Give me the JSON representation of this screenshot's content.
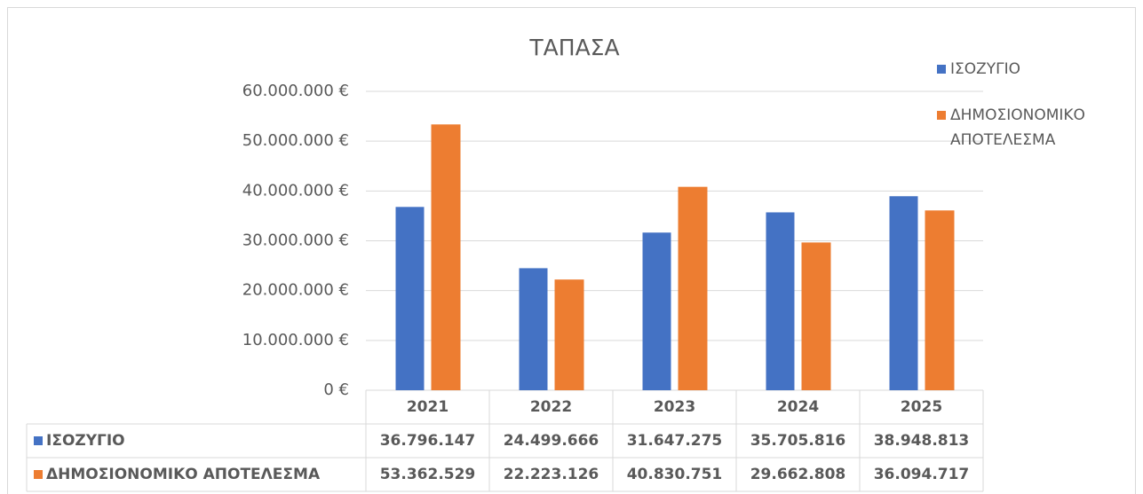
{
  "chart_data": {
    "type": "bar",
    "title": "ΤΑΠΑΣΑ",
    "categories": [
      "2021",
      "2022",
      "2023",
      "2024",
      "2025"
    ],
    "series": [
      {
        "name": "ΙΣΟΖΥΓΙΟ",
        "color": "#4472c4",
        "values": [
          36796147,
          24499666,
          31647275,
          35705816,
          38948813
        ],
        "value_labels": [
          "36.796.147",
          "24.499.666",
          "31.647.275",
          "35.705.816",
          "38.948.813"
        ]
      },
      {
        "name": "ΔΗΜΟΣΙΟΝΟΜΙΚΟ ΑΠΟΤΕΛΕΣΜΑ",
        "color": "#ed7d31",
        "values": [
          53362529,
          22223126,
          40830751,
          29662808,
          36094717
        ],
        "value_labels": [
          "53.362.529",
          "22.223.126",
          "40.830.751",
          "29.662.808",
          "36.094.717"
        ]
      }
    ],
    "ylim": [
      0,
      60000000
    ],
    "yticks": [
      {
        "value": 0,
        "label": "0 €"
      },
      {
        "value": 10000000,
        "label": "10.000.000 €"
      },
      {
        "value": 20000000,
        "label": "20.000.000 €"
      },
      {
        "value": 30000000,
        "label": "30.000.000 €"
      },
      {
        "value": 40000000,
        "label": "40.000.000 €"
      },
      {
        "value": 50000000,
        "label": "50.000.000 €"
      },
      {
        "value": 60000000,
        "label": "60.000.000 €"
      }
    ],
    "grid": true,
    "legend": "right"
  }
}
